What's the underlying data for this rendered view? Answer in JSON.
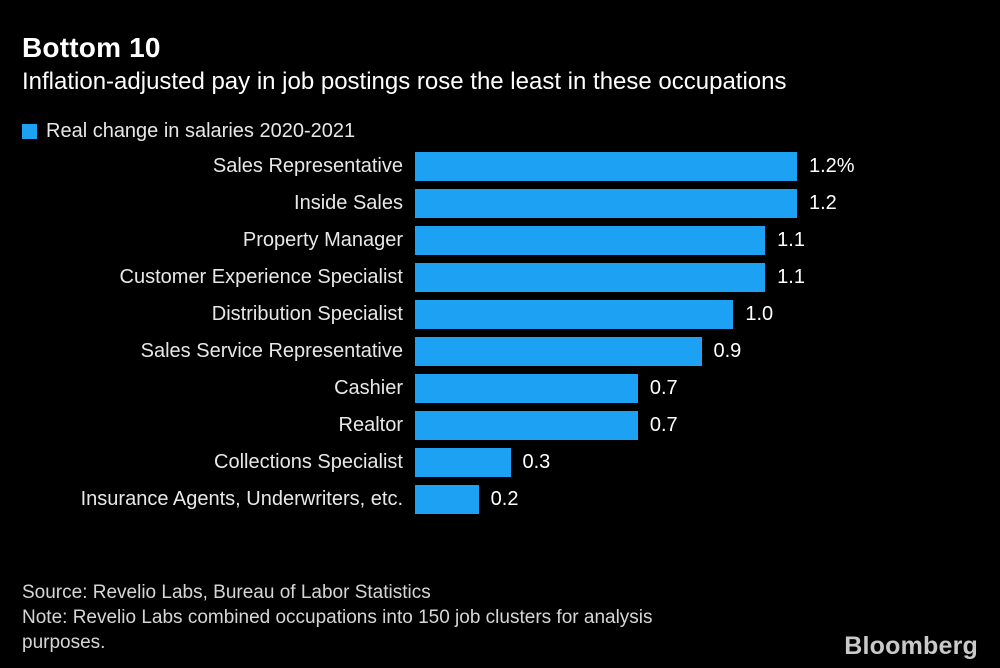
{
  "chart_data": {
    "type": "bar",
    "orientation": "horizontal",
    "title": "Bottom 10",
    "subtitle": "Inflation-adjusted pay in job postings rose the least in these occupations",
    "legend": {
      "label": "Real change in salaries 2020-2021"
    },
    "categories": [
      "Sales Representative",
      "Inside Sales",
      "Property Manager",
      "Customer Experience Specialist",
      "Distribution Specialist",
      "Sales Service Representative",
      "Cashier",
      "Realtor",
      "Collections Specialist",
      "Insurance Agents, Underwriters, etc."
    ],
    "values": [
      1.2,
      1.2,
      1.1,
      1.1,
      1.0,
      0.9,
      0.7,
      0.7,
      0.3,
      0.2
    ],
    "value_labels": [
      "1.2%",
      "1.2",
      "1.1",
      "1.1",
      "1.0",
      "0.9",
      "0.7",
      "0.7",
      "0.3",
      "0.2"
    ],
    "unit": "%",
    "xlim": [
      0,
      1.2
    ],
    "grid": false,
    "legend_position": "top-left",
    "value_label_position": "end-of-bar"
  },
  "footer": {
    "source": "Source: Revelio Labs, Bureau of Labor Statistics",
    "note_lines": [
      "Note: Revelio Labs combined occupations into 150 job clusters for analysis",
      "purposes."
    ],
    "brand": "Bloomberg"
  },
  "colors": {
    "background": "#000000",
    "bar": "#1DA1F2",
    "title_text": "#FFFFFF",
    "label_text": "#E8E8E8",
    "footer_text": "#D6D6D6",
    "brand_text": "#C9C9C9"
  }
}
